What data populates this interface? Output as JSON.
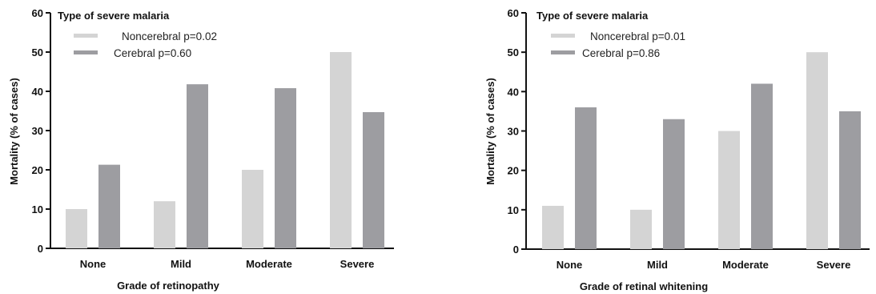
{
  "chart_data": [
    {
      "type": "bar",
      "categories": [
        "None",
        "Mild",
        "Moderate",
        "Severe"
      ],
      "series": [
        {
          "name": "Noncerebral",
          "p_label": "p=0.02",
          "color": "#d4d4d4",
          "values": [
            10,
            12,
            20,
            50
          ]
        },
        {
          "name": "Cerebral",
          "p_label": "p=0.60",
          "color": "#9d9da1",
          "values": [
            21.3,
            41.8,
            40.8,
            34.7
          ]
        }
      ],
      "legend_title": "Type of severe malaria",
      "legend_position": "top-left",
      "title": "",
      "xlabel": "Grade of retinopathy",
      "ylabel": "Mortality (% of cases)",
      "ylim": [
        0,
        60
      ],
      "yticks": [
        0,
        10,
        20,
        30,
        40,
        50,
        60
      ],
      "grid": false
    },
    {
      "type": "bar",
      "categories": [
        "None",
        "Mild",
        "Moderate",
        "Severe"
      ],
      "series": [
        {
          "name": "Noncerebral",
          "p_label": "p=0.01",
          "color": "#d4d4d4",
          "values": [
            11,
            10,
            30,
            50
          ]
        },
        {
          "name": "Cerebral",
          "p_label": "p=0.86",
          "color": "#9d9da1",
          "values": [
            36,
            33,
            42,
            35
          ]
        }
      ],
      "legend_title": "Type of severe malaria",
      "legend_position": "top-left",
      "title": "",
      "xlabel": "Grade of retinal whitening",
      "ylabel": "Mortality (% of cases)",
      "ylim": [
        0,
        60
      ],
      "yticks": [
        0,
        10,
        20,
        30,
        40,
        50,
        60
      ],
      "grid": false
    }
  ]
}
